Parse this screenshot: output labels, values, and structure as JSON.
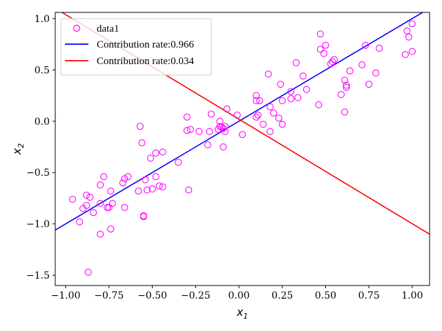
{
  "chart_data": {
    "type": "scatter",
    "title": "",
    "xlabel": "x",
    "xlabel_sub": "1",
    "ylabel": "x",
    "ylabel_sub": "2",
    "xlim": [
      -1.06,
      1.1
    ],
    "ylim": [
      -1.6,
      1.06
    ],
    "grid": false,
    "legend_placement": "top-left",
    "x_ticks": [
      -1.0,
      -0.75,
      -0.5,
      -0.25,
      0.0,
      0.25,
      0.5,
      0.75,
      1.0
    ],
    "x_tick_labels": [
      "−1.00",
      "−0.75",
      "−0.50",
      "−0.25",
      "0.00",
      "0.25",
      "0.50",
      "0.75",
      "1.00"
    ],
    "y_ticks": [
      -1.5,
      -1.0,
      -0.5,
      0.0,
      0.5,
      1.0
    ],
    "y_tick_labels": [
      "−1.5",
      "−1.0",
      "−0.5",
      "0.0",
      "0.5",
      "1.0"
    ],
    "colors": {
      "points": "#ff00ff",
      "line1": "#0000ff",
      "line2": "#ff0000"
    },
    "series": [
      {
        "name": "data1",
        "kind": "scatter",
        "points": [
          [
            -0.96,
            -0.76
          ],
          [
            -0.92,
            -0.98
          ],
          [
            -0.9,
            -0.85
          ],
          [
            -0.88,
            -0.72
          ],
          [
            -0.88,
            -0.82
          ],
          [
            -0.87,
            -1.47
          ],
          [
            -0.86,
            -0.74
          ],
          [
            -0.84,
            -0.89
          ],
          [
            -0.8,
            -0.8
          ],
          [
            -0.8,
            -0.62
          ],
          [
            -0.8,
            -1.1
          ],
          [
            -0.78,
            -0.54
          ],
          [
            -0.76,
            -0.84
          ],
          [
            -0.75,
            -0.84
          ],
          [
            -0.74,
            -0.68
          ],
          [
            -0.74,
            -1.05
          ],
          [
            -0.73,
            -0.8
          ],
          [
            -0.67,
            -0.6
          ],
          [
            -0.66,
            -0.84
          ],
          [
            -0.66,
            -0.56
          ],
          [
            -0.64,
            -0.54
          ],
          [
            -0.58,
            -0.68
          ],
          [
            -0.57,
            -0.05
          ],
          [
            -0.56,
            -0.21
          ],
          [
            -0.55,
            -0.92
          ],
          [
            -0.55,
            -0.93
          ],
          [
            -0.54,
            -0.57
          ],
          [
            -0.53,
            -0.67
          ],
          [
            -0.51,
            -0.36
          ],
          [
            -0.5,
            -0.66
          ],
          [
            -0.48,
            -0.31
          ],
          [
            -0.48,
            -0.54
          ],
          [
            -0.46,
            -0.63
          ],
          [
            -0.44,
            -0.3
          ],
          [
            -0.44,
            -0.64
          ],
          [
            -0.35,
            -0.4
          ],
          [
            -0.3,
            0.04
          ],
          [
            -0.3,
            -0.09
          ],
          [
            -0.29,
            -0.67
          ],
          [
            -0.28,
            -0.08
          ],
          [
            -0.23,
            -0.1
          ],
          [
            -0.18,
            -0.23
          ],
          [
            -0.17,
            -0.1
          ],
          [
            -0.16,
            0.07
          ],
          [
            -0.12,
            -0.08
          ],
          [
            -0.11,
            0.0
          ],
          [
            -0.11,
            -0.05
          ],
          [
            -0.1,
            -0.06
          ],
          [
            -0.09,
            -0.25
          ],
          [
            -0.09,
            -0.07
          ],
          [
            -0.08,
            -0.05
          ],
          [
            -0.08,
            -0.1
          ],
          [
            -0.07,
            0.12
          ],
          [
            -0.01,
            0.06
          ],
          [
            0.02,
            -0.13
          ],
          [
            0.1,
            0.04
          ],
          [
            0.1,
            0.2
          ],
          [
            0.1,
            0.25
          ],
          [
            0.11,
            0.06
          ],
          [
            0.12,
            0.2
          ],
          [
            0.14,
            -0.03
          ],
          [
            0.17,
            0.46
          ],
          [
            0.18,
            0.14
          ],
          [
            0.18,
            -0.1
          ],
          [
            0.2,
            0.08
          ],
          [
            0.23,
            0.03
          ],
          [
            0.24,
            0.36
          ],
          [
            0.25,
            0.2
          ],
          [
            0.25,
            -0.03
          ],
          [
            0.3,
            0.22
          ],
          [
            0.3,
            0.29
          ],
          [
            0.33,
            0.57
          ],
          [
            0.34,
            0.23
          ],
          [
            0.37,
            0.44
          ],
          [
            0.39,
            0.31
          ],
          [
            0.46,
            0.16
          ],
          [
            0.47,
            0.7
          ],
          [
            0.47,
            0.85
          ],
          [
            0.49,
            0.66
          ],
          [
            0.5,
            0.74
          ],
          [
            0.53,
            0.56
          ],
          [
            0.54,
            0.58
          ],
          [
            0.55,
            0.6
          ],
          [
            0.59,
            0.26
          ],
          [
            0.61,
            0.09
          ],
          [
            0.61,
            0.4
          ],
          [
            0.62,
            0.33
          ],
          [
            0.62,
            0.35
          ],
          [
            0.64,
            0.49
          ],
          [
            0.71,
            0.55
          ],
          [
            0.73,
            0.74
          ],
          [
            0.75,
            0.36
          ],
          [
            0.79,
            0.47
          ],
          [
            0.81,
            0.71
          ],
          [
            0.96,
            0.65
          ],
          [
            0.97,
            0.88
          ],
          [
            0.98,
            0.82
          ],
          [
            1.0,
            0.68
          ],
          [
            1.0,
            0.95
          ]
        ]
      },
      {
        "name": "Contribution rate:0.966",
        "kind": "line",
        "points": [
          [
            -1.06,
            -1.06
          ],
          [
            1.1,
            1.1
          ]
        ]
      },
      {
        "name": "Contribution rate:0.034",
        "kind": "line",
        "points": [
          [
            -1.06,
            1.1
          ],
          [
            1.1,
            -1.1
          ]
        ]
      }
    ]
  }
}
